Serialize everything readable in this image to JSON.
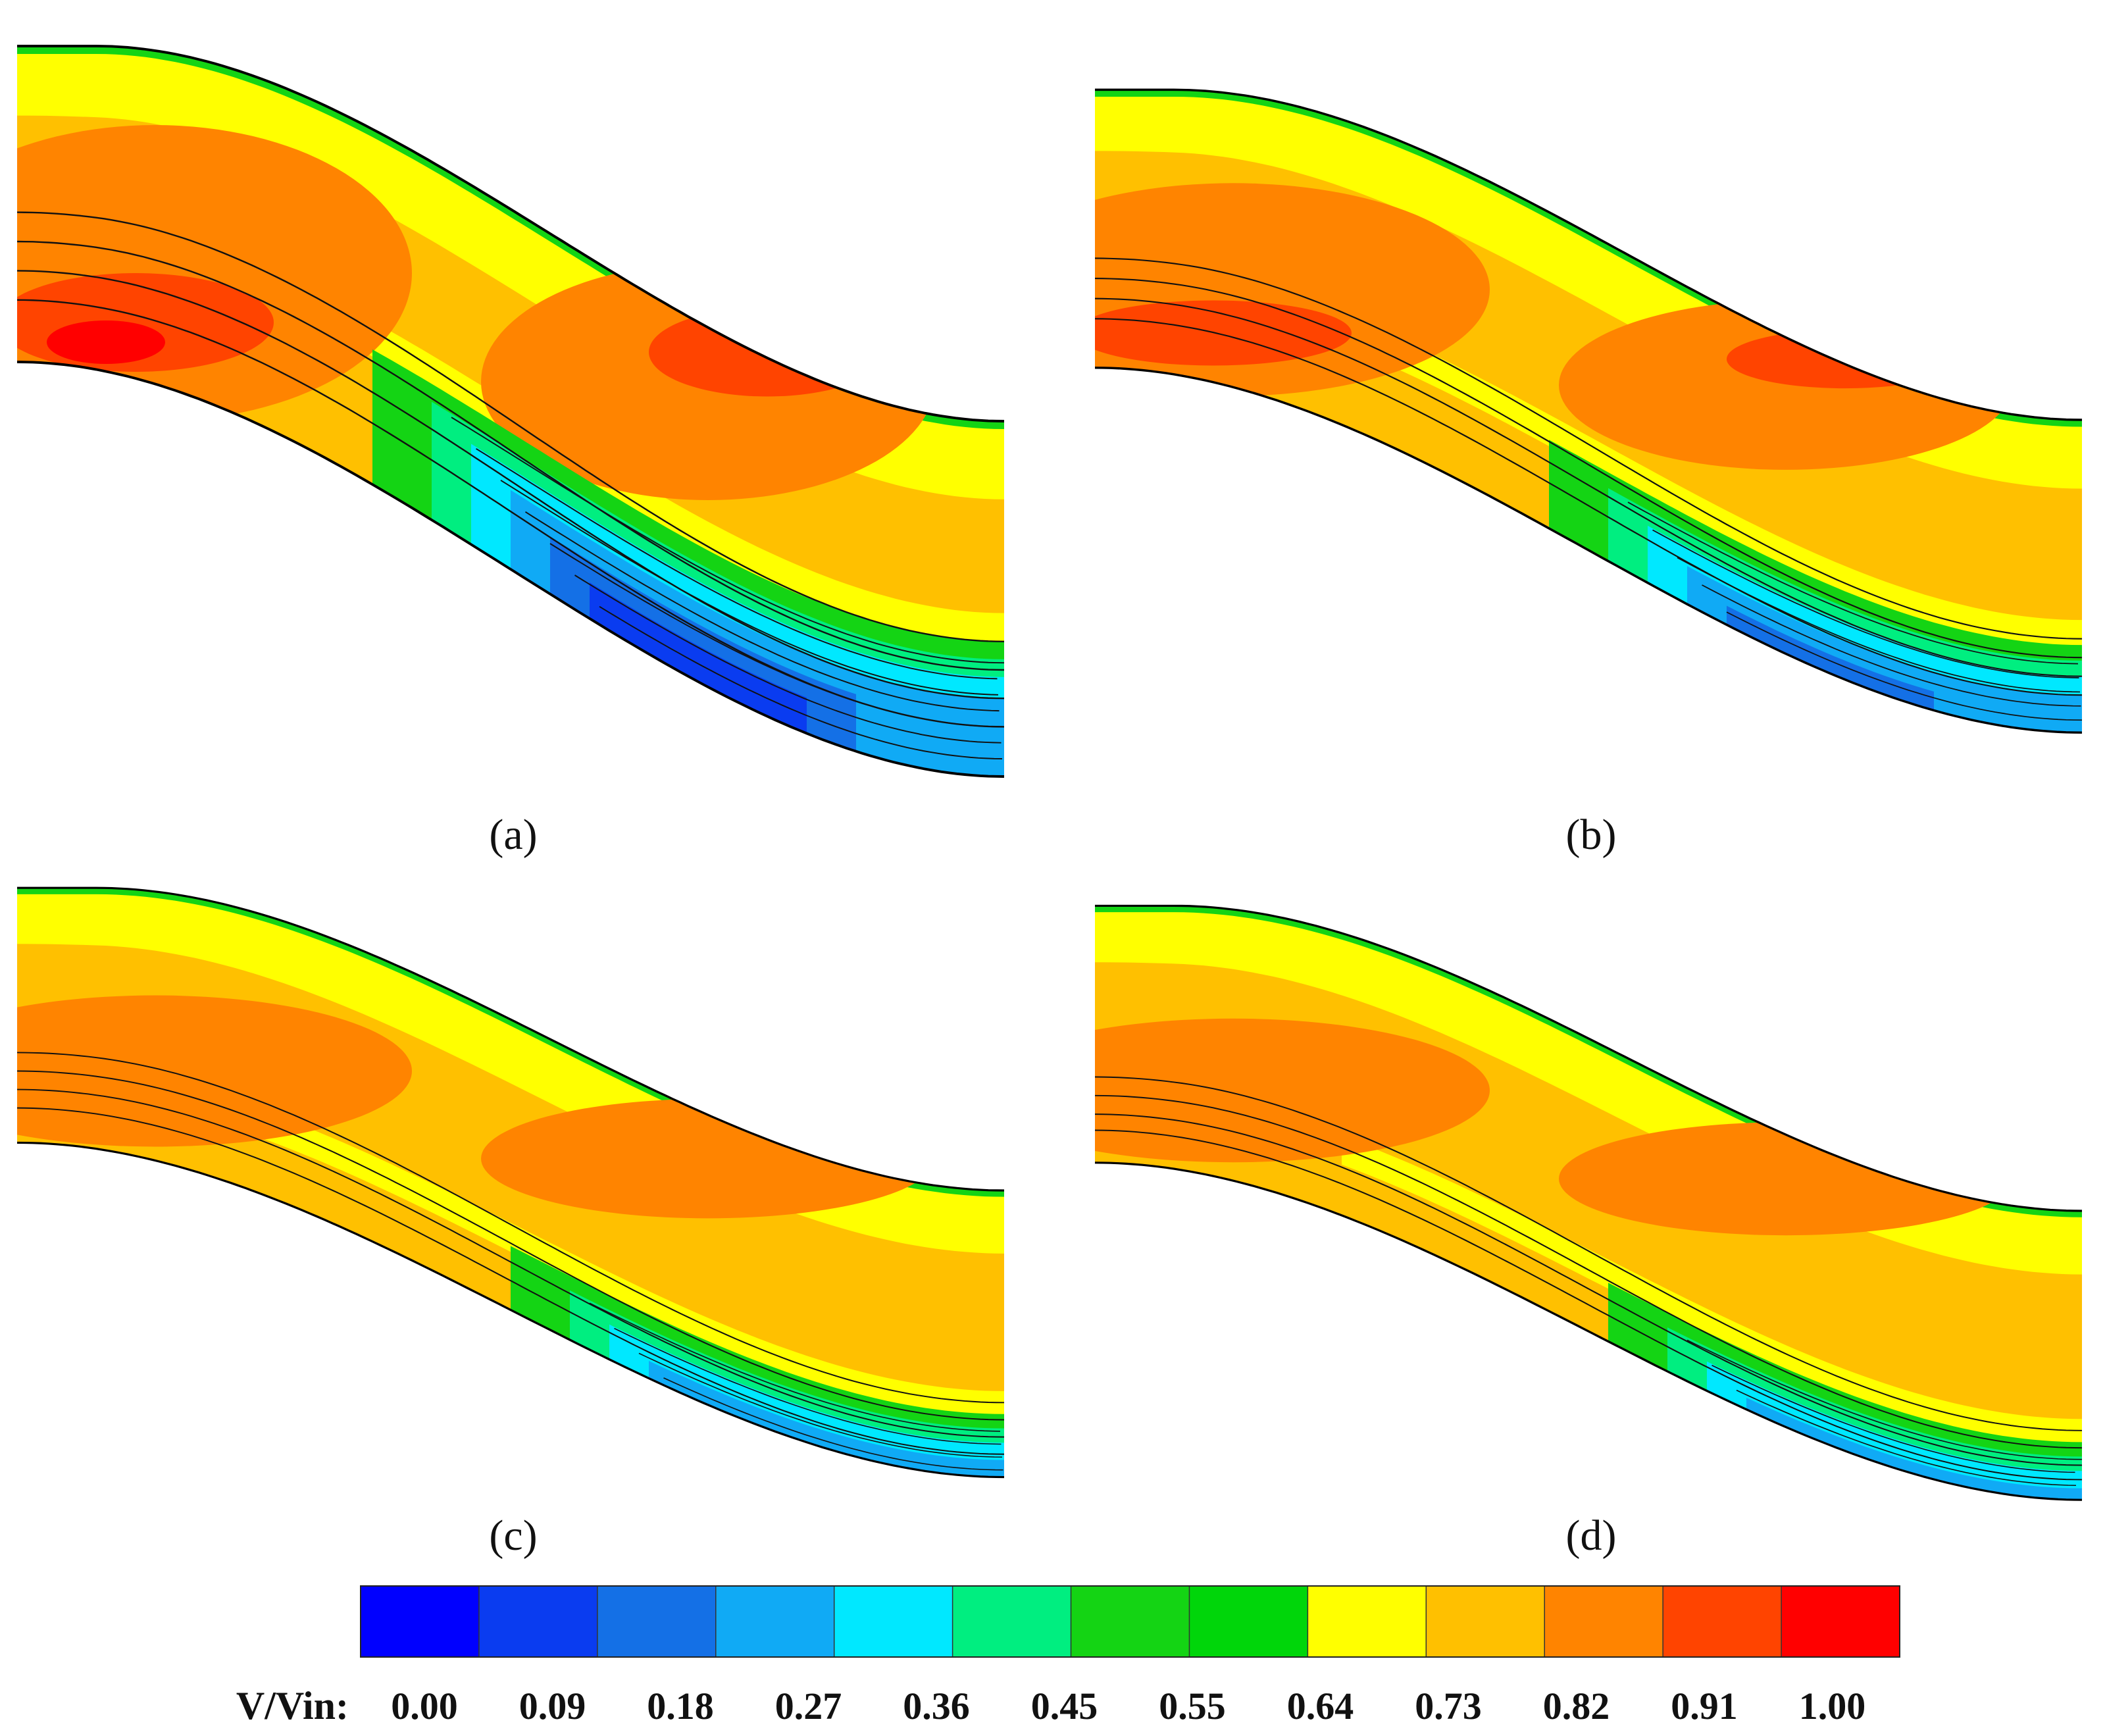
{
  "figure": {
    "panels": [
      {
        "id": "a",
        "label": "(a)",
        "bubble": "large",
        "core": "strong"
      },
      {
        "id": "b",
        "label": "(b)",
        "bubble": "medium",
        "core": "medium"
      },
      {
        "id": "c",
        "label": "(c)",
        "bubble": "small",
        "core": "weak"
      },
      {
        "id": "d",
        "label": "(d)",
        "bubble": "smallest",
        "core": "weak"
      }
    ]
  },
  "chart_data": {
    "type": "heatmap",
    "title": "",
    "description": "Velocity ratio contours with streamlines in an S-shaped duct, four cases (a)-(d)",
    "colorbar": {
      "label": "V/Vin:",
      "tick_labels": [
        "0.00",
        "0.09",
        "0.18",
        "0.27",
        "0.36",
        "0.45",
        "0.55",
        "0.64",
        "0.73",
        "0.82",
        "0.91",
        "1.00"
      ],
      "min": 0.0,
      "max": 1.0,
      "colors": [
        "#0000ff",
        "#0a3cf0",
        "#1470e6",
        "#10aaf5",
        "#00e8ff",
        "#00ee80",
        "#14d414",
        "#00d60a",
        "#ffff00",
        "#ffc000",
        "#ff8400",
        "#ff4400",
        "#ff0000"
      ]
    }
  }
}
